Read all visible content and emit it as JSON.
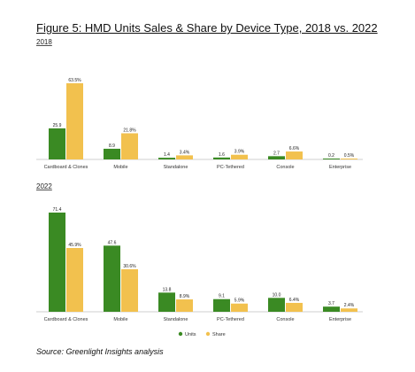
{
  "title": "Figure 5: HMD Units Sales & Share by Device Type, 2018 vs. 2022",
  "source": "Source: Greenlight Insights analysis",
  "colors": {
    "units": "#3a8a23",
    "share": "#f2c14e",
    "axis": "#bfbfbf"
  },
  "chart_data": [
    {
      "type": "bar",
      "title": "2018",
      "categories": [
        "Cardboard & Clones",
        "Mobile",
        "Standalone",
        "PC-Tethered",
        "Console",
        "Enterprise"
      ],
      "grid": false,
      "series": [
        {
          "name": "Units",
          "values": [
            25.9,
            8.9,
            1.4,
            1.6,
            2.7,
            0.2
          ],
          "labels": [
            "25.9",
            "8.9",
            "1.4",
            "1.6",
            "2.7",
            "0.2"
          ]
        },
        {
          "name": "Share",
          "values": [
            63.5,
            21.8,
            3.4,
            3.9,
            6.6,
            0.5
          ],
          "labels": [
            "63.5%",
            "21.8%",
            "3.4%",
            "3.9%",
            "6.6%",
            "0.5%"
          ]
        }
      ]
    },
    {
      "type": "bar",
      "title": "2022",
      "categories": [
        "Cardboard & Clones",
        "Mobile",
        "Standalone",
        "PC-Tethered",
        "Console",
        "Enterprise"
      ],
      "grid": false,
      "legend": "bottom",
      "series": [
        {
          "name": "Units",
          "values": [
            71.4,
            47.6,
            13.8,
            9.1,
            10.0,
            3.7
          ],
          "labels": [
            "71.4",
            "47.6",
            "13.8",
            "9.1",
            "10.0",
            "3.7"
          ]
        },
        {
          "name": "Share",
          "values": [
            45.9,
            30.6,
            8.9,
            5.9,
            6.4,
            2.4
          ],
          "labels": [
            "45.9%",
            "30.6%",
            "8.9%",
            "5.9%",
            "6.4%",
            "2.4%"
          ]
        }
      ]
    }
  ]
}
